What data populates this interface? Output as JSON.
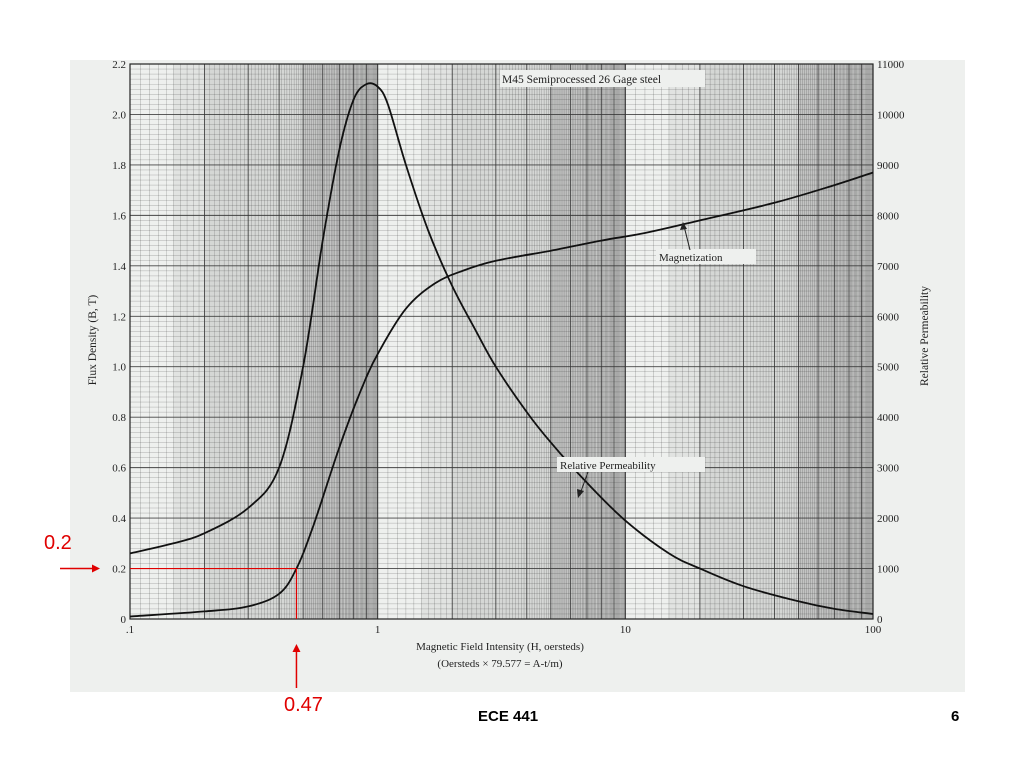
{
  "slide": {
    "footer": "ECE 441",
    "page_number": "6",
    "annotations": {
      "flux_value": "0.2",
      "field_value": "0.47"
    }
  },
  "chart_data": {
    "type": "line",
    "title": "M45 Semiprocessed 26 Gage steel",
    "xlabel": "Magnetic Field Intensity (H, oersteds)",
    "xlabel_note": "(Oersteds × 79.577 = A-t/m)",
    "ylabel_left": "Flux Density (B, T)",
    "ylabel_right": "Relative Permeability",
    "x_scale": "log",
    "xlim": [
      0.1,
      100
    ],
    "x_ticks": [
      ".1",
      "1",
      "10",
      "100"
    ],
    "ylim_left": [
      0,
      2.2
    ],
    "y_ticks_left": [
      "0",
      "0.2",
      "0.4",
      "0.6",
      "0.8",
      "1.0",
      "1.2",
      "1.4",
      "1.6",
      "1.8",
      "2.0",
      "2.2"
    ],
    "ylim_right": [
      0,
      11000
    ],
    "y_ticks_right": [
      "0",
      "1000",
      "2000",
      "3000",
      "4000",
      "5000",
      "6000",
      "7000",
      "8000",
      "9000",
      "10000",
      "11000"
    ],
    "grid": true,
    "series": [
      {
        "name": "Magnetization",
        "axis": "left",
        "x": [
          0.1,
          0.2,
          0.3,
          0.4,
          0.47,
          0.55,
          0.7,
          0.85,
          1.0,
          1.3,
          1.7,
          2.2,
          3,
          5,
          8,
          12,
          20,
          40,
          70,
          100
        ],
        "y": [
          0.01,
          0.03,
          0.05,
          0.1,
          0.2,
          0.37,
          0.68,
          0.9,
          1.05,
          1.23,
          1.33,
          1.38,
          1.42,
          1.46,
          1.5,
          1.53,
          1.58,
          1.65,
          1.72,
          1.77
        ]
      },
      {
        "name": "Relative Permeability",
        "axis": "right",
        "x": [
          0.1,
          0.15,
          0.2,
          0.3,
          0.4,
          0.5,
          0.6,
          0.7,
          0.8,
          0.9,
          1.0,
          1.1,
          1.3,
          1.6,
          2,
          2.5,
          3,
          4,
          5,
          7,
          10,
          15,
          20,
          30,
          50,
          70,
          100
        ],
        "y": [
          1300,
          1500,
          1700,
          2200,
          3000,
          5000,
          7500,
          9300,
          10300,
          10600,
          10550,
          10200,
          9000,
          7700,
          6600,
          5700,
          5000,
          4100,
          3500,
          2700,
          1950,
          1300,
          1000,
          650,
          350,
          200,
          100
        ]
      }
    ],
    "annotations": [
      {
        "text": "Magnetization",
        "x": 22,
        "y_left": 1.4
      },
      {
        "text": "Relative Permeability",
        "x": 8,
        "y_right": 3050
      },
      {
        "text": "0.2",
        "axis": "left",
        "value": 0.2
      },
      {
        "text": "0.47",
        "axis": "x",
        "value": 0.47
      }
    ]
  }
}
